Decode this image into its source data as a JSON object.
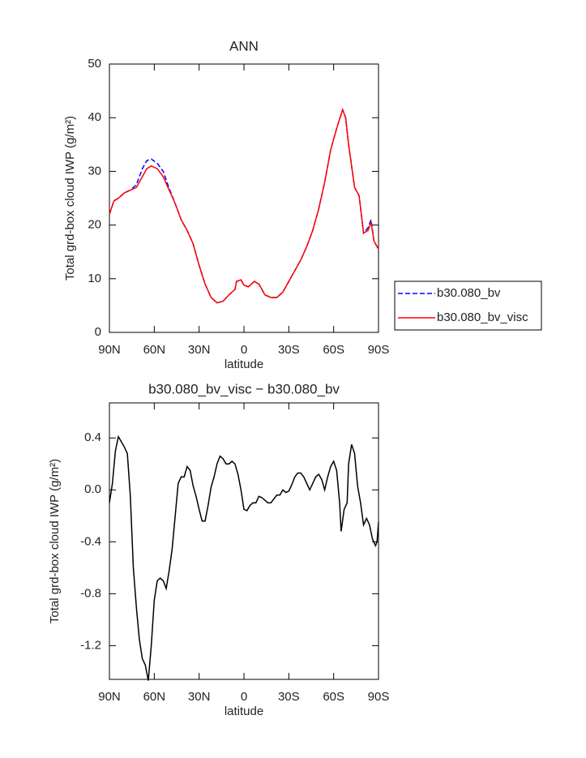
{
  "chart_data": [
    {
      "type": "line",
      "title": "ANN",
      "xlabel": "latitude",
      "ylabel": "Total grd-box cloud IWP (g/m²)",
      "x": [
        90,
        87,
        84,
        80,
        76,
        72,
        68,
        65,
        62,
        58,
        54,
        50,
        46,
        42,
        38,
        34,
        30,
        26,
        22,
        18,
        14,
        10,
        6,
        5,
        2,
        0,
        -3,
        -7,
        -10,
        -14,
        -18,
        -22,
        -26,
        -30,
        -34,
        -38,
        -42,
        -46,
        -50,
        -54,
        -58,
        -62,
        -66,
        -68,
        -70,
        -72,
        -74,
        -77,
        -80,
        -83,
        -85,
        -87,
        -90
      ],
      "series": [
        {
          "name": "b30.080_bv",
          "color": "#0000ff",
          "line_style": "dashed",
          "values": [
            22,
            24.5,
            25,
            26,
            26.5,
            27.5,
            30.5,
            32,
            32.3,
            31.5,
            30,
            26.8,
            24,
            21,
            19,
            16.5,
            12.5,
            9,
            6.5,
            5.5,
            5.8,
            7,
            8,
            9.5,
            9.8,
            8.8,
            8.5,
            9.5,
            9,
            7,
            6.5,
            6.5,
            7.5,
            9.5,
            11.5,
            13.5,
            16,
            19,
            23,
            28,
            34,
            38,
            41.5,
            40,
            35,
            31,
            27,
            25.5,
            18.5,
            19.5,
            21,
            17,
            15.5
          ]
        },
        {
          "name": "b30.080_bv_visc",
          "color": "#ff0000",
          "line_style": "solid",
          "values": [
            22,
            24.5,
            25,
            26,
            26.5,
            27,
            29,
            30.5,
            31,
            30.5,
            29,
            26.5,
            24,
            21,
            19,
            16.5,
            12.5,
            9,
            6.5,
            5.5,
            5.8,
            7,
            8,
            9.5,
            9.8,
            8.8,
            8.5,
            9.5,
            9,
            7,
            6.5,
            6.5,
            7.5,
            9.5,
            11.5,
            13.5,
            16,
            19,
            23,
            28,
            34,
            38,
            41.5,
            40,
            35,
            31,
            27,
            25.5,
            18.5,
            19,
            20.5,
            17,
            15.5
          ]
        }
      ],
      "xlim": [
        90,
        -90
      ],
      "xticks": [
        {
          "value": 90,
          "label": "90N"
        },
        {
          "value": 60,
          "label": "60N"
        },
        {
          "value": 30,
          "label": "30N"
        },
        0,
        {
          "value": -30,
          "label": "30S"
        },
        {
          "value": -60,
          "label": "60S"
        },
        {
          "value": -90,
          "label": "90S"
        }
      ],
      "ylim": [
        0,
        50
      ],
      "yticks": [
        0,
        10,
        20,
        30,
        40,
        50
      ],
      "legend": "right"
    },
    {
      "type": "line",
      "title": "b30.080_bv_visc − b30.080_bv",
      "xlabel": "latitude",
      "ylabel": "Total grd-box cloud IWP (g/m²)",
      "x": [
        90,
        88,
        86,
        84,
        82,
        80,
        78,
        76,
        74,
        72,
        70,
        68,
        66,
        64,
        62,
        60,
        58,
        56,
        54,
        52,
        50,
        48,
        46,
        44,
        42,
        40,
        38,
        36,
        34,
        32,
        30,
        28,
        26,
        24,
        22,
        20,
        18,
        16,
        14,
        12,
        10,
        8,
        6,
        4,
        2,
        0,
        -2,
        -4,
        -6,
        -8,
        -10,
        -12,
        -14,
        -16,
        -18,
        -20,
        -22,
        -24,
        -26,
        -28,
        -30,
        -32,
        -34,
        -36,
        -38,
        -40,
        -42,
        -44,
        -46,
        -48,
        -50,
        -52,
        -54,
        -56,
        -58,
        -60,
        -62,
        -64,
        -65,
        -67,
        -69,
        -70,
        -72,
        -74,
        -76,
        -78,
        -80,
        -82,
        -84,
        -86,
        -88,
        -89,
        -90
      ],
      "values": [
        -0.1,
        0.05,
        0.3,
        0.41,
        0.37,
        0.33,
        0.28,
        -0.05,
        -0.6,
        -0.9,
        -1.15,
        -1.3,
        -1.35,
        -1.47,
        -1.2,
        -0.85,
        -0.7,
        -0.68,
        -0.7,
        -0.76,
        -0.62,
        -0.45,
        -0.2,
        0.05,
        0.1,
        0.1,
        0.18,
        0.15,
        0.03,
        -0.05,
        -0.15,
        -0.24,
        -0.24,
        -0.12,
        0.02,
        0.1,
        0.2,
        0.26,
        0.24,
        0.2,
        0.2,
        0.22,
        0.2,
        0.12,
        0.0,
        -0.15,
        -0.16,
        -0.12,
        -0.1,
        -0.1,
        -0.05,
        -0.06,
        -0.08,
        -0.1,
        -0.1,
        -0.07,
        -0.04,
        -0.04,
        0.0,
        -0.02,
        -0.01,
        0.04,
        0.1,
        0.13,
        0.13,
        0.1,
        0.05,
        0.0,
        0.05,
        0.1,
        0.12,
        0.08,
        0.0,
        0.1,
        0.18,
        0.22,
        0.15,
        -0.1,
        -0.32,
        -0.15,
        -0.1,
        0.2,
        0.35,
        0.28,
        0.03,
        -0.1,
        -0.27,
        -0.22,
        -0.27,
        -0.38,
        -0.43,
        -0.4,
        -0.25
      ],
      "color": "#000000",
      "xlim": [
        90,
        -90
      ],
      "xticks": [
        {
          "value": 90,
          "label": "90N"
        },
        {
          "value": 60,
          "label": "60N"
        },
        {
          "value": 30,
          "label": "30N"
        },
        0,
        {
          "value": -30,
          "label": "30S"
        },
        {
          "value": -60,
          "label": "60S"
        },
        {
          "value": -90,
          "label": "90S"
        }
      ],
      "ylim": [
        -1.46,
        0.67
      ],
      "yticks": [
        -1.2,
        -0.8,
        -0.4,
        {
          "value": 0,
          "label": "0.0"
        },
        0.4
      ]
    }
  ]
}
